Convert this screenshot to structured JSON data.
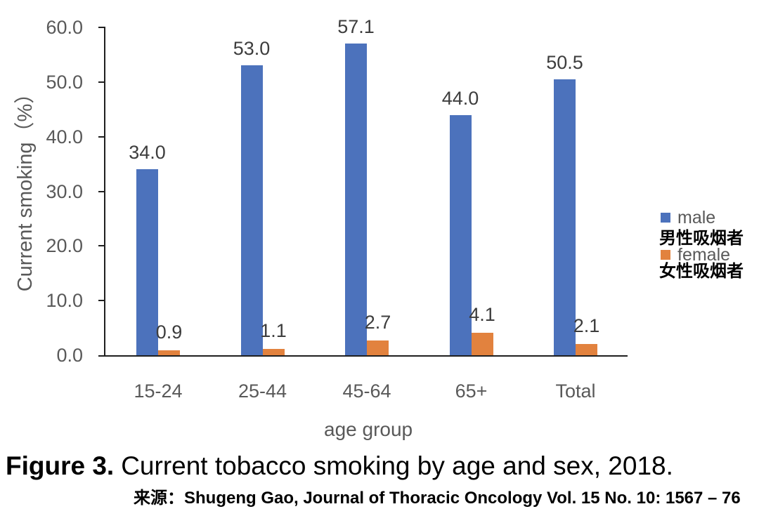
{
  "chart_data": {
    "type": "bar",
    "title": "",
    "categories": [
      "15-24",
      "25-44",
      "45-64",
      "65+",
      "Total"
    ],
    "series": [
      {
        "name": "male",
        "label_cn": "男性吸烟者",
        "color": "#4C72BC",
        "values": [
          34.0,
          53.0,
          57.1,
          44.0,
          50.5
        ]
      },
      {
        "name": "female",
        "label_cn": "女性吸烟者",
        "color": "#E2823E",
        "values": [
          0.9,
          1.1,
          2.7,
          4.1,
          2.1
        ]
      }
    ],
    "xlabel": "age group",
    "ylabel": "Current smoking（%）",
    "ylim": [
      0,
      60
    ],
    "yticks": [
      "0.0",
      "10.0",
      "20.0",
      "30.0",
      "40.0",
      "50.0",
      "60.0"
    ],
    "value_label_decimals": 1,
    "grid": false,
    "legend_position": "right",
    "bar_label_color": "#3d3d3d",
    "axis_text_color": "#595959",
    "axis_line_color": "#1f1f1f"
  },
  "caption": {
    "prefix": "Figure 3.",
    "rest": "Current tobacco smoking by age and sex, 2018."
  },
  "source": {
    "text": "来源：Shugeng Gao, Journal of Thoracic Oncology Vol. 15 No. 10: 1567 – 76"
  }
}
